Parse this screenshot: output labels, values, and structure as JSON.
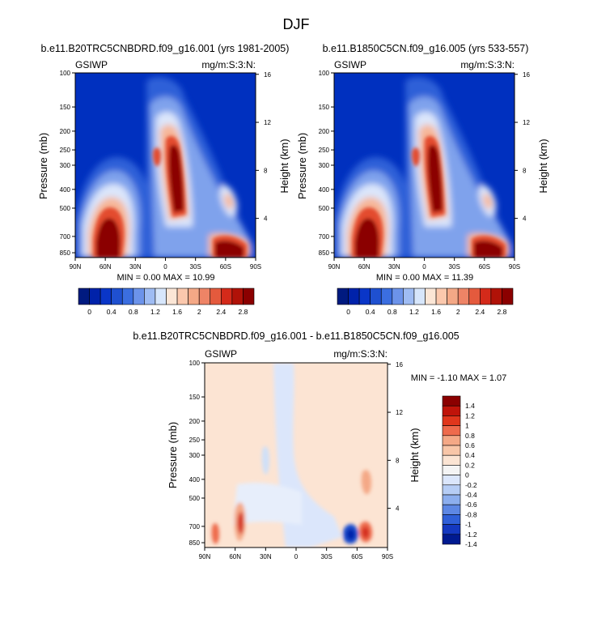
{
  "figure_title": "DJF",
  "chart_data": [
    {
      "type": "heatmap",
      "title": "b.e11.B20TRC5CNBDRD.f09_g16.001 (yrs 1981-2005)",
      "variable_label": "GSIWP",
      "units_label": "mg/m:S:3:N:",
      "xlabel": "",
      "ylabel": "Pressure (mb)",
      "ylabel_right": "Height (km)",
      "x_ticks": [
        "90N",
        "60N",
        "30N",
        "0",
        "30S",
        "60S",
        "90S"
      ],
      "y_ticks": [
        "100",
        "150",
        "200",
        "250",
        "300",
        "400",
        "500",
        "700",
        "850"
      ],
      "height_ticks": [
        "16",
        "12",
        "8",
        "4"
      ],
      "min_max_text": "MIN =  0.00  MAX = 10.99",
      "min": 0.0,
      "max": 10.99,
      "colorbar_labels": [
        "0",
        "0.4",
        "0.8",
        "1.2",
        "1.6",
        "2",
        "2.4",
        "2.8"
      ]
    },
    {
      "type": "heatmap",
      "title": "b.e11.B1850C5CN.f09_g16.005 (yrs 533-557)",
      "variable_label": "GSIWP",
      "units_label": "mg/m:S:3:N:",
      "xlabel": "",
      "ylabel": "Pressure (mb)",
      "ylabel_right": "Height (km)",
      "x_ticks": [
        "90N",
        "60N",
        "30N",
        "0",
        "30S",
        "60S",
        "90S"
      ],
      "y_ticks": [
        "100",
        "150",
        "200",
        "250",
        "300",
        "400",
        "500",
        "700",
        "850"
      ],
      "height_ticks": [
        "16",
        "12",
        "8",
        "4"
      ],
      "min_max_text": "MIN =  0.00  MAX = 11.39",
      "min": 0.0,
      "max": 11.39,
      "colorbar_labels": [
        "0",
        "0.4",
        "0.8",
        "1.2",
        "1.6",
        "2",
        "2.4",
        "2.8"
      ]
    },
    {
      "type": "heatmap",
      "title": "b.e11.B20TRC5CNBDRD.f09_g16.001 - b.e11.B1850C5CN.f09_g16.005",
      "variable_label": "GSIWP",
      "units_label": "mg/m:S:3:N:",
      "xlabel": "",
      "ylabel": "Pressure (mb)",
      "ylabel_right": "Height (km)",
      "x_ticks": [
        "90N",
        "60N",
        "30N",
        "0",
        "30S",
        "60S",
        "90S"
      ],
      "y_ticks": [
        "100",
        "150",
        "200",
        "250",
        "300",
        "400",
        "500",
        "700",
        "850"
      ],
      "height_ticks": [
        "16",
        "12",
        "8",
        "4"
      ],
      "min_max_text": "MIN =  -1.10  MAX =   1.07",
      "min": -1.1,
      "max": 1.07,
      "colorbar_labels": [
        "1.4",
        "1.2",
        "1",
        "0.8",
        "0.6",
        "0.4",
        "0.2",
        "0",
        "-0.2",
        "-0.4",
        "-0.6",
        "-0.8",
        "-1",
        "-1.2",
        "-1.4"
      ]
    }
  ],
  "colors": {
    "deep_blue": "#0022aa",
    "blue": "#1f50d0",
    "light_blue": "#9fbcf3",
    "very_light_blue": "#d7e6fb",
    "white": "#f7f4f1",
    "peach": "#fbdcc7",
    "light_orange": "#f4a886",
    "orange": "#ee6a4c",
    "red": "#d42a1a",
    "dark_red": "#8b0000"
  }
}
